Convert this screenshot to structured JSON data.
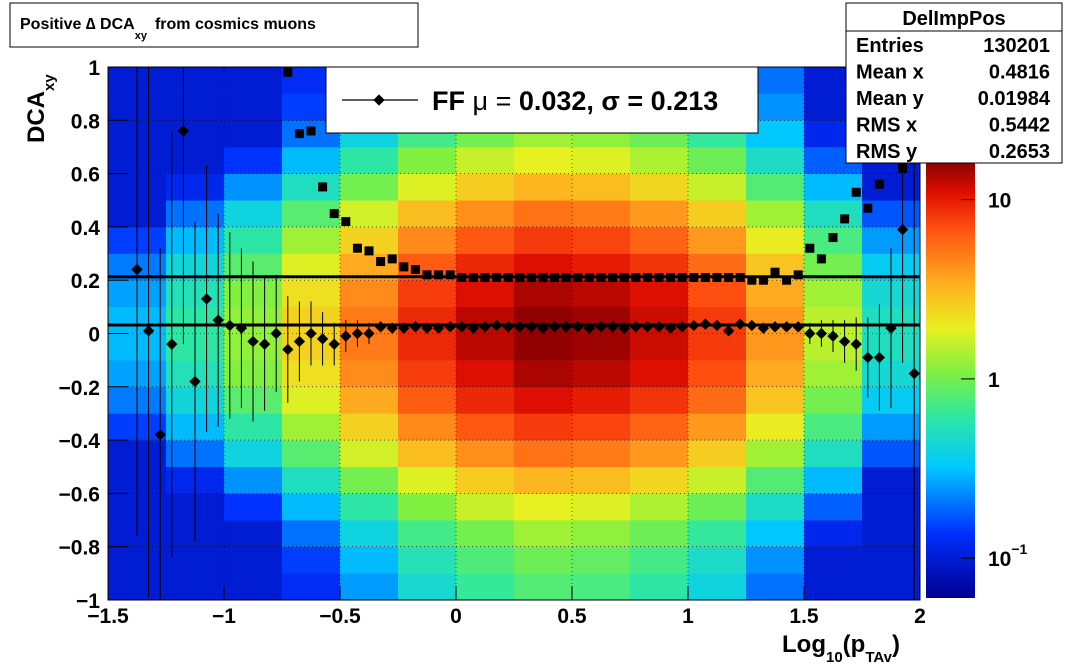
{
  "chart_data": {
    "type": "heatmap_profile",
    "title": [
      "Positive ∆ DCA",
      "xy",
      "from cosmics muons"
    ],
    "xlabel": [
      "Log",
      "10",
      "(p",
      "TAv",
      ")"
    ],
    "ylabel": [
      "DCA",
      "xy"
    ],
    "xlim": [
      -1.5,
      2
    ],
    "ylim": [
      -1,
      1
    ],
    "zlim": [
      0.06,
      16
    ],
    "log_z": true,
    "grid": true,
    "xticks": [
      {
        "value": -1.5,
        "label": "−1.5"
      },
      {
        "value": -1,
        "label": "−1"
      },
      {
        "value": -0.5,
        "label": "−0.5"
      },
      0,
      0.5,
      1,
      1.5,
      2
    ],
    "yticks": [
      {
        "value": -1,
        "label": "−1"
      },
      {
        "value": -0.8,
        "label": "−0.8"
      },
      {
        "value": -0.6,
        "label": "−0.6"
      },
      {
        "value": -0.4,
        "label": "−0.4"
      },
      {
        "value": -0.2,
        "label": "−0.2"
      },
      0,
      0.2,
      0.4,
      0.6,
      0.8,
      1
    ],
    "zticks": [
      {
        "value": 0.1,
        "label": "10",
        "exponent": "−1"
      },
      1,
      10
    ],
    "heatmap": {
      "xbins": [
        -1.5,
        -1.25,
        -1,
        -0.75,
        -0.5,
        -0.25,
        0,
        0.25,
        0.5,
        0.75,
        1,
        1.25,
        1.5,
        1.75,
        2
      ],
      "ybins": [
        -1,
        -0.9,
        -0.8,
        -0.7,
        -0.6,
        -0.5,
        -0.4,
        -0.3,
        -0.2,
        -0.1,
        0,
        0.1,
        0.2,
        0.3,
        0.4,
        0.5,
        0.6,
        0.7,
        0.8,
        0.9,
        1
      ],
      "values": [
        [
          0.1,
          0.1,
          0.1,
          0.1,
          0.1,
          0.1,
          0.15,
          0.21,
          0.26,
          0.3,
          0.3,
          0.26,
          0.21,
          0.15,
          0.1,
          0.1,
          0.1,
          0.1,
          0.1,
          0.1
        ],
        [
          0.1,
          0.1,
          0.1,
          0.1,
          0.12,
          0.2,
          0.3,
          0.42,
          0.53,
          0.6,
          0.6,
          0.53,
          0.42,
          0.3,
          0.2,
          0.12,
          0.1,
          0.1,
          0.1,
          0.1
        ],
        [
          0.1,
          0.1,
          0.1,
          0.14,
          0.24,
          0.4,
          0.6,
          0.84,
          1.1,
          1.2,
          1.2,
          1.1,
          0.84,
          0.6,
          0.4,
          0.24,
          0.14,
          0.1,
          0.1,
          0.1
        ],
        [
          0.13,
          0.15,
          0.2,
          0.3,
          0.5,
          0.83,
          1.3,
          1.8,
          2.2,
          2.5,
          2.5,
          2.2,
          1.8,
          1.3,
          0.83,
          0.5,
          0.3,
          0.2,
          0.15,
          0.13
        ],
        [
          0.25,
          0.3,
          0.4,
          0.6,
          1,
          1.7,
          2.5,
          3.5,
          4.4,
          5,
          5,
          4.4,
          3.5,
          2.5,
          1.7,
          1,
          0.6,
          0.4,
          0.3,
          0.25
        ],
        [
          0.45,
          0.54,
          0.72,
          1.1,
          1.8,
          3,
          4.5,
          6.3,
          7.9,
          9,
          9,
          7.9,
          6.3,
          4.5,
          3,
          1.8,
          1.1,
          0.72,
          0.54,
          0.45
        ],
        [
          0.65,
          0.78,
          1,
          1.6,
          2.6,
          4.3,
          6.5,
          9.1,
          11,
          13,
          13,
          11,
          9.1,
          6.5,
          4.3,
          2.6,
          1.6,
          1,
          0.78,
          0.65
        ],
        [
          0.8,
          0.96,
          1.3,
          1.9,
          3.2,
          5.3,
          8,
          11,
          14,
          16,
          16,
          14,
          11,
          8,
          5.3,
          3.2,
          1.9,
          1.3,
          0.96,
          0.8
        ],
        [
          0.75,
          0.9,
          1.2,
          1.8,
          3,
          5,
          7.5,
          10,
          13,
          15,
          15,
          13,
          10,
          7.5,
          5,
          3,
          1.8,
          1.2,
          0.9,
          0.75
        ],
        [
          0.6,
          0.72,
          0.96,
          1.4,
          2.4,
          4,
          6,
          8.4,
          11,
          12,
          12,
          11,
          8.4,
          6,
          4,
          2.4,
          1.4,
          0.96,
          0.72,
          0.6
        ],
        [
          0.4,
          0.48,
          0.64,
          0.96,
          1.6,
          2.6,
          4,
          5.6,
          7,
          8,
          8,
          7,
          5.6,
          4,
          2.6,
          1.6,
          0.96,
          0.64,
          0.48,
          0.4
        ],
        [
          0.2,
          0.24,
          0.32,
          0.48,
          0.8,
          1.3,
          2,
          2.8,
          3.5,
          4,
          4,
          3.5,
          2.8,
          2,
          1.3,
          0.8,
          0.48,
          0.32,
          0.24,
          0.2
        ],
        [
          0.1,
          0.1,
          0.12,
          0.18,
          0.3,
          0.5,
          0.75,
          1,
          1.3,
          1.5,
          1.5,
          1.3,
          1,
          0.75,
          0.5,
          0.3,
          0.18,
          0.12,
          0.1,
          0.1
        ],
        [
          0.1,
          0.1,
          0.1,
          0.1,
          0.1,
          0.17,
          0.25,
          0.35,
          0.44,
          0.5,
          0.5,
          0.44,
          0.35,
          0.25,
          0.17,
          0.1,
          0.1,
          0.1,
          0.1,
          0.1
        ]
      ]
    },
    "profile": {
      "x": [
        -1.375,
        -1.325,
        -1.275,
        -1.225,
        -1.175,
        -1.125,
        -1.075,
        -1.025,
        -0.975,
        -0.925,
        -0.875,
        -0.825,
        -0.775,
        -0.725,
        -0.675,
        -0.625,
        -0.575,
        -0.525,
        -0.475,
        -0.425,
        -0.375,
        -0.325,
        -0.275,
        -0.225,
        -0.175,
        -0.125,
        -0.075,
        -0.025,
        0.025,
        0.075,
        0.125,
        0.175,
        0.225,
        0.275,
        0.325,
        0.375,
        0.425,
        0.475,
        0.525,
        0.575,
        0.625,
        0.675,
        0.725,
        0.775,
        0.825,
        0.875,
        0.925,
        0.975,
        1.025,
        1.075,
        1.125,
        1.175,
        1.225,
        1.275,
        1.325,
        1.375,
        1.425,
        1.475,
        1.525,
        1.575,
        1.625,
        1.675,
        1.725,
        1.775,
        1.825,
        1.875,
        1.925,
        1.975
      ],
      "mean": [
        0.24,
        0.01,
        -0.38,
        -0.04,
        0.76,
        -0.18,
        0.13,
        0.05,
        0.03,
        0.02,
        -0.03,
        -0.04,
        0,
        -0.06,
        -0.03,
        0,
        -0.02,
        -0.04,
        -0.01,
        0,
        0,
        0.025,
        0.02,
        0.02,
        0.025,
        0.02,
        0.02,
        0.025,
        0.025,
        0.02,
        0.025,
        0.03,
        0.025,
        0.025,
        0.025,
        0.02,
        0.025,
        0.025,
        0.025,
        0.02,
        0.025,
        0.025,
        0.02,
        0.025,
        0.025,
        0.025,
        0.02,
        0.025,
        0.03,
        0.035,
        0.03,
        0.01,
        0.035,
        0.03,
        0.02,
        0.025,
        0.025,
        0.025,
        0,
        0,
        -0.01,
        -0.03,
        -0.04,
        -0.09,
        -0.09,
        0.02,
        0.39,
        -0.15
      ],
      "mean_error": [
        1.0,
        1.0,
        0.7,
        0.8,
        0.8,
        0.6,
        0.5,
        0.4,
        0.35,
        0.3,
        0.3,
        0.25,
        0.22,
        0.2,
        0.15,
        0.12,
        0.1,
        0.08,
        0.06,
        0.05,
        0.04,
        0.015,
        0.015,
        0.015,
        0.015,
        0.015,
        0.015,
        0.015,
        0.015,
        0.015,
        0.015,
        0.015,
        0.015,
        0.015,
        0.015,
        0.015,
        0.015,
        0.015,
        0.015,
        0.015,
        0.015,
        0.015,
        0.015,
        0.015,
        0.015,
        0.015,
        0.015,
        0.015,
        0.015,
        0.015,
        0.015,
        0.015,
        0.015,
        0.015,
        0.015,
        0.015,
        0.015,
        0.015,
        0.04,
        0.05,
        0.06,
        0.08,
        0.1,
        0.15,
        0.2,
        0.3,
        0.5,
        0.9
      ],
      "sigma": [
        null,
        null,
        null,
        null,
        null,
        null,
        null,
        null,
        null,
        null,
        null,
        null,
        null,
        0.98,
        0.75,
        0.76,
        0.55,
        0.45,
        0.42,
        0.32,
        0.31,
        0.27,
        0.28,
        0.25,
        0.24,
        0.22,
        0.22,
        0.22,
        0.21,
        0.21,
        0.21,
        0.21,
        0.21,
        0.21,
        0.21,
        0.21,
        0.21,
        0.21,
        0.21,
        0.21,
        0.21,
        0.21,
        0.21,
        0.21,
        0.21,
        0.21,
        0.21,
        0.21,
        0.21,
        0.21,
        0.21,
        0.21,
        0.21,
        0.2,
        0.2,
        0.23,
        0.2,
        0.22,
        0.32,
        0.28,
        0.36,
        0.43,
        0.53,
        0.47,
        0.56,
        0.74,
        0.62,
        0.66
      ]
    },
    "legend": {
      "name": "FF",
      "mu_label": "μ = ",
      "mu": 0.032,
      "sigma_label": ", σ = ",
      "sigma": 0.213
    },
    "stats": {
      "title": "DelImpPos",
      "rows": [
        [
          "Entries",
          "130201"
        ],
        [
          "Mean x",
          "0.4816"
        ],
        [
          "Mean y",
          "0.01984"
        ],
        [
          "RMS x",
          "0.5442"
        ],
        [
          "RMS y",
          "0.2653"
        ]
      ]
    }
  }
}
